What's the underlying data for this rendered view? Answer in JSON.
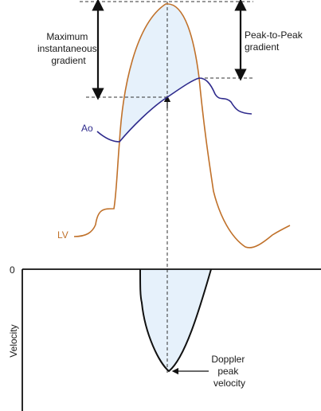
{
  "labels": {
    "max_gradient": [
      "Maximum",
      "instantaneous",
      "gradient"
    ],
    "peak_to_peak": [
      "Peak-to-Peak",
      "gradient"
    ],
    "ao": "Ao",
    "lv": "LV",
    "zero": "0",
    "velocity_axis": "Velocity",
    "doppler": [
      "Doppler",
      "peak",
      "velocity"
    ]
  },
  "colors": {
    "lv_curve": "#c0712a",
    "ao_curve": "#2e2a8c",
    "gradient_fill": "#e6f1fb",
    "ink": "#111111"
  }
}
